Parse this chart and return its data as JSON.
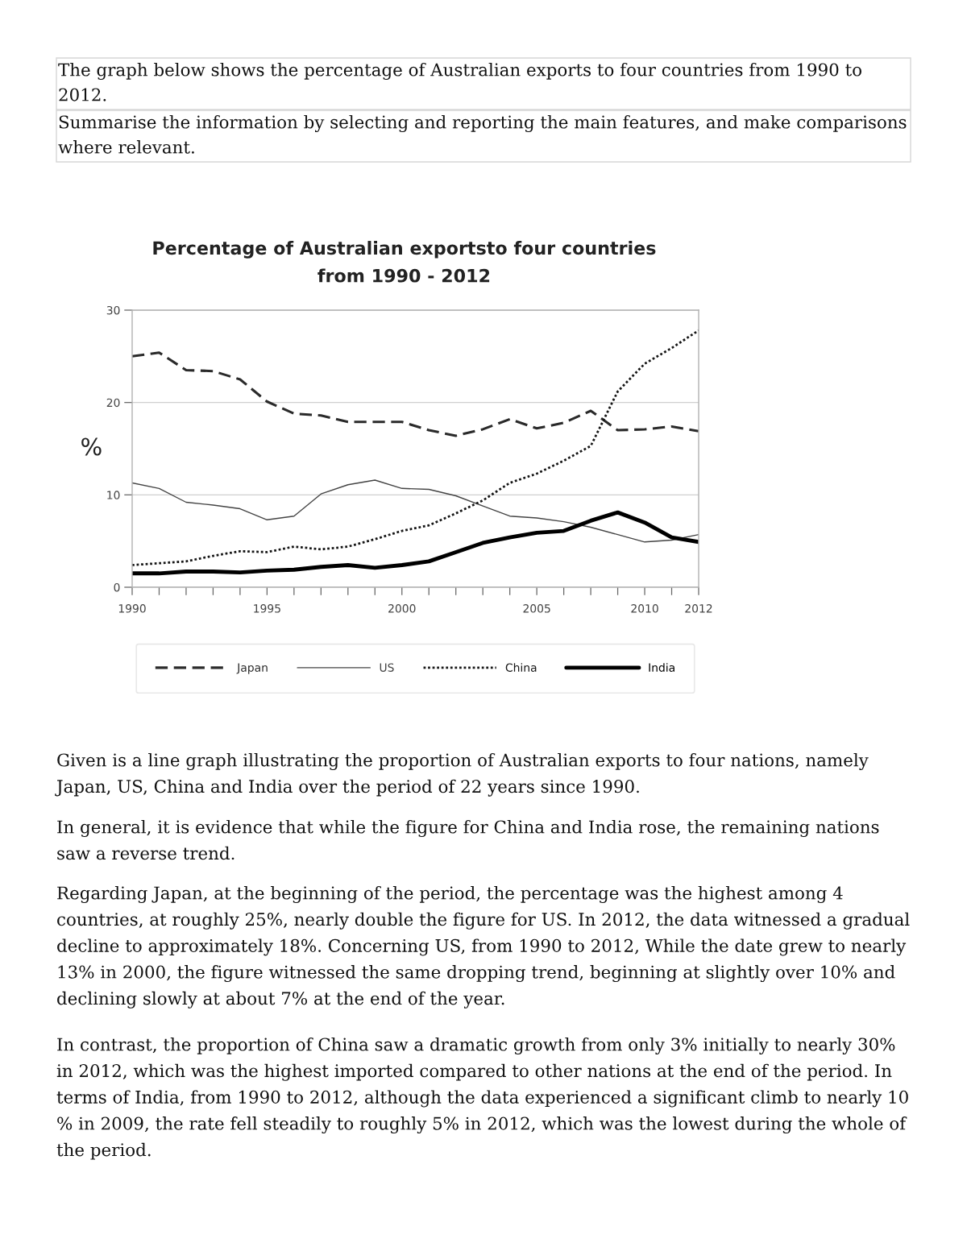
{
  "chart_data": {
    "type": "line",
    "title": "Percentage of Australian exportsto four countries\nfrom 1990 - 2012",
    "ylabel": "%",
    "categories": [
      "1990",
      null,
      null,
      null,
      null,
      "1995",
      null,
      null,
      null,
      null,
      "2000",
      null,
      null,
      null,
      null,
      "2005",
      null,
      null,
      null,
      "2010",
      null,
      "2012"
    ],
    "series": [
      {
        "name": "Japan",
        "color": "#2a2a2a",
        "line_style": "dashed",
        "values": [
          25.0,
          25.4,
          23.5,
          23.4,
          22.5,
          20.1,
          18.8,
          18.6,
          17.9,
          17.9,
          17.9,
          17.0,
          16.4,
          17.1,
          18.2,
          17.2,
          17.8,
          19.1,
          17.0,
          17.1,
          17.4,
          16.9
        ]
      },
      {
        "name": "US",
        "color": "#444444",
        "line_style": "solid",
        "values": [
          11.3,
          10.7,
          9.2,
          8.9,
          8.5,
          7.3,
          7.7,
          10.1,
          11.1,
          11.6,
          10.7,
          10.6,
          9.9,
          8.8,
          7.7,
          7.5,
          7.1,
          6.5,
          5.7,
          4.9,
          5.1,
          5.7
        ]
      },
      {
        "name": "China",
        "color": "#151515",
        "line_style": "dotted",
        "values": [
          2.4,
          2.6,
          2.8,
          3.4,
          3.9,
          3.8,
          4.4,
          4.1,
          4.4,
          5.2,
          6.1,
          6.7,
          8.0,
          9.4,
          11.3,
          12.3,
          13.7,
          15.3,
          21.2,
          24.2,
          25.9,
          27.8
        ]
      },
      {
        "name": "India",
        "color": "#000000",
        "line_style": "solid",
        "values": [
          1.5,
          1.5,
          1.7,
          1.7,
          1.6,
          1.8,
          1.9,
          2.2,
          2.4,
          2.1,
          2.4,
          2.8,
          3.8,
          4.8,
          5.4,
          5.9,
          6.1,
          7.2,
          8.1,
          7.0,
          5.4,
          4.9
        ]
      }
    ],
    "ylim": [
      0,
      30
    ],
    "yticks": [
      0,
      10,
      20,
      30
    ],
    "grid": "y",
    "legend": "bottom",
    "annotations": [
      "The graph below shows the percentage of Australian exports to four countries from 1990 to 2012.",
      "Summarise the information by selecting and reporting the main features, and make comparisons where relevant.",
      "Given is a line graph illustrating the proportion of Australian exports to four nations, namely Japan, US, China and India over the period of 22 years since 1990.",
      "In general, it is evidence that while the figure for China and India rose, the remaining nations saw a reverse trend.",
      "Regarding Japan, at the beginning of the period, the percentage was the highest among 4 countries, at roughly 25%, nearly double the figure for US. In 2012, the data witnessed a gradual decline to approximately 18%. Concerning US, from 1990 to 2012, While the date grew to nearly 13% in 2000, the figure witnessed the same dropping trend, beginning at slightly over 10% and declining slowly at about 7% at the end of the year.",
      "In contrast, the proportion of China saw a dramatic growth from only 3% initially to nearly 30% in 2012, which was the highest imported compared to other nations at the end of the period. In terms of India, from 1990 to 2012, although the data experienced a significant climb to nearly 10 % in 2009, the rate fell steadily to roughly 5% in 2012, which was the lowest during the whole of the period."
    ]
  }
}
